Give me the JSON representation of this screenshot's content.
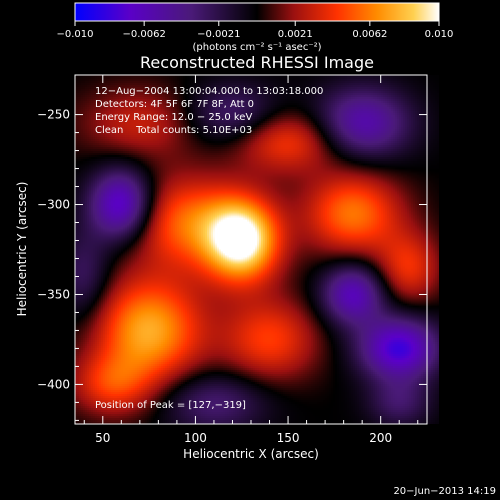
{
  "chart_data": {
    "type": "heatmap",
    "title": "Reconstructed RHESSI Image",
    "xlabel": "Heliocentric X (arcsec)",
    "ylabel": "Heliocentric Y (arcsec)",
    "xlim": [
      35,
      225
    ],
    "ylim": [
      -422,
      -228
    ],
    "xticks": [
      50,
      100,
      150,
      200
    ],
    "yticks": [
      -250,
      -300,
      -350,
      -400
    ],
    "colorbar": {
      "range": [
        -0.01,
        0.01
      ],
      "ticks": [
        -0.01,
        -0.0062,
        -0.0021,
        0.0021,
        0.0062,
        0.01
      ],
      "tick_labels": [
        "−0.010",
        "−0.0062",
        "−0.0021",
        "0.0021",
        "0.0062",
        "0.010"
      ],
      "colormap": [
        "#0000ff",
        "#5a00c8",
        "#4a1a78",
        "#000000",
        "#9a1010",
        "#ff3200",
        "#ff8c00",
        "#ffd050",
        "#ffffff"
      ]
    },
    "annotations": [
      "12−Aug−2004 13:00:04.000 to 13:03:18.000",
      "Detectors: 4F 5F 6F 7F 8F, Att 0",
      "Energy Range: 12.0 − 25.0 keV",
      "Clean    Total counts: 5.10E+03"
    ],
    "peak_label": "Position of Peak = [127,−319]",
    "peak": [
      127,
      -319
    ],
    "blobs": [
      {
        "x": 125,
        "y": -320,
        "sx": 14,
        "sy": 16,
        "v": 0.0105
      },
      {
        "x": 95,
        "y": -310,
        "sx": 22,
        "sy": 18,
        "v": 0.0055
      },
      {
        "x": 75,
        "y": -370,
        "sx": 20,
        "sy": 20,
        "v": 0.0075
      },
      {
        "x": 55,
        "y": -400,
        "sx": 15,
        "sy": 12,
        "v": 0.004
      },
      {
        "x": 140,
        "y": -375,
        "sx": 18,
        "sy": 16,
        "v": 0.0045
      },
      {
        "x": 185,
        "y": -305,
        "sx": 18,
        "sy": 16,
        "v": 0.006
      },
      {
        "x": 215,
        "y": -335,
        "sx": 12,
        "sy": 14,
        "v": 0.004
      },
      {
        "x": 70,
        "y": -255,
        "sx": 22,
        "sy": 14,
        "v": 0.003
      },
      {
        "x": 150,
        "y": -265,
        "sx": 20,
        "sy": 12,
        "v": 0.0045
      },
      {
        "x": 60,
        "y": -300,
        "sx": 12,
        "sy": 14,
        "v": -0.008
      },
      {
        "x": 120,
        "y": -250,
        "sx": 18,
        "sy": 12,
        "v": -0.0035
      },
      {
        "x": 190,
        "y": -255,
        "sx": 18,
        "sy": 14,
        "v": -0.006
      },
      {
        "x": 185,
        "y": -350,
        "sx": 12,
        "sy": 12,
        "v": -0.0065
      },
      {
        "x": 210,
        "y": -380,
        "sx": 15,
        "sy": 12,
        "v": -0.008
      },
      {
        "x": 110,
        "y": -410,
        "sx": 20,
        "sy": 12,
        "v": -0.0035
      },
      {
        "x": 210,
        "y": -410,
        "sx": 12,
        "sy": 10,
        "v": -0.003
      },
      {
        "x": 40,
        "y": -340,
        "sx": 10,
        "sy": 18,
        "v": -0.003
      }
    ]
  },
  "colorbar_unit": "(photons cm⁻² s⁻¹ asec⁻²)",
  "footer_date": "20−Jun−2013 14:19"
}
